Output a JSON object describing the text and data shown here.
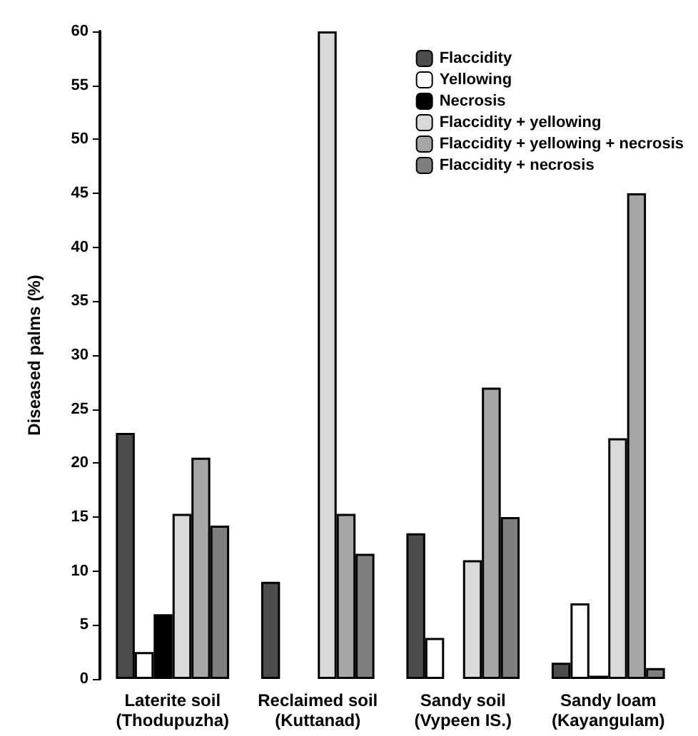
{
  "chart_data": {
    "type": "bar",
    "ylabel": "Diseased palms (%)",
    "categories": [
      "Laterite soil\n(Thodupuzha)",
      "Reclaimed soil\n(Kuttanad)",
      "Sandy soil\n(Vypeen IS.)",
      "Sandy loam\n(Kayangulam)"
    ],
    "series": [
      {
        "name": "Flaccidity",
        "color": "#4d4d4d",
        "values": [
          22.8,
          9,
          13.5,
          1.5
        ]
      },
      {
        "name": "Yellowing",
        "color": "#ffffff",
        "values": [
          2.5,
          0,
          3.8,
          7
        ]
      },
      {
        "name": "Necrosis",
        "color": "#000000",
        "values": [
          6,
          0,
          0,
          0.3
        ]
      },
      {
        "name": "Flaccidity + yellowing",
        "color": "#d9d9d9",
        "values": [
          15.3,
          60,
          11,
          22.3
        ]
      },
      {
        "name": "Flaccidity + yellowing + necrosis",
        "color": "#a6a6a6",
        "values": [
          20.5,
          15.3,
          27,
          45
        ]
      },
      {
        "name": "Flaccidity + necrosis",
        "color": "#7f7f7f",
        "values": [
          14.2,
          11.6,
          15,
          1
        ]
      }
    ],
    "ylim": [
      0,
      60
    ],
    "yticks": [
      0,
      5,
      10,
      15,
      20,
      25,
      30,
      35,
      40,
      45,
      50,
      55,
      60
    ],
    "grid": false,
    "legend": "top right"
  }
}
